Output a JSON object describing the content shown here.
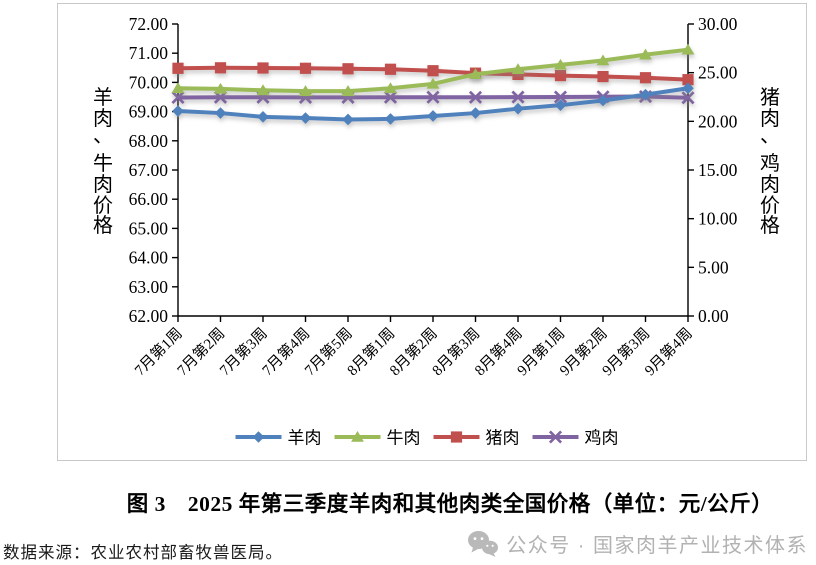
{
  "chart_data": {
    "type": "line",
    "title": "2025年第三季度羊肉和其他肉类全国价格（单位：元/公斤）",
    "categories": [
      "7月第1周",
      "7月第2周",
      "7月第3周",
      "7月第4周",
      "7月第5周",
      "8月第1周",
      "8月第2周",
      "8月第3周",
      "8月第4周",
      "9月第1周",
      "9月第2周",
      "9月第3周",
      "9月第4周"
    ],
    "series": [
      {
        "name": "羊肉",
        "axis": "left",
        "marker": "diamond",
        "color": "#4F81BD",
        "values": [
          69.02,
          68.95,
          68.82,
          68.78,
          68.73,
          68.75,
          68.85,
          68.95,
          69.1,
          69.22,
          69.38,
          69.58,
          69.8
        ]
      },
      {
        "name": "牛肉",
        "axis": "left",
        "marker": "triangle",
        "color": "#9BBB59",
        "values": [
          69.8,
          69.78,
          69.73,
          69.7,
          69.7,
          69.8,
          69.95,
          70.28,
          70.45,
          70.6,
          70.75,
          70.95,
          71.12
        ]
      },
      {
        "name": "猪肉",
        "axis": "right",
        "marker": "square",
        "color": "#C0504D",
        "values": [
          25.45,
          25.5,
          25.48,
          25.45,
          25.4,
          25.35,
          25.2,
          24.95,
          24.82,
          24.7,
          24.6,
          24.48,
          24.28
        ]
      },
      {
        "name": "鸡肉",
        "axis": "right",
        "marker": "x",
        "color": "#8064A2",
        "values": [
          22.45,
          22.47,
          22.47,
          22.46,
          22.46,
          22.47,
          22.48,
          22.47,
          22.49,
          22.5,
          22.52,
          22.55,
          22.42
        ]
      }
    ],
    "left_axis": {
      "title": "羊肉、牛肉价格",
      "min": 62,
      "max": 72,
      "ticks": [
        "72.00",
        "71.00",
        "70.00",
        "69.00",
        "68.00",
        "67.00",
        "66.00",
        "65.00",
        "64.00",
        "63.00",
        "62.00"
      ]
    },
    "right_axis": {
      "title": "猪肉、鸡肉价格",
      "min": 0,
      "max": 30,
      "ticks": [
        "30.00",
        "25.00",
        "20.00",
        "15.00",
        "10.00",
        "5.00",
        "0.00"
      ]
    },
    "legend_position": "bottom",
    "legend": [
      "羊肉",
      "牛肉",
      "猪肉",
      "鸡肉"
    ],
    "grid": false
  },
  "caption": {
    "text": "图 3　2025 年第三季度羊肉和其他肉类全国价格（单位：元/公斤）"
  },
  "source_note": {
    "text": "数据来源：农业农村部畜牧兽医局。"
  },
  "watermark": {
    "icon": "wechat-icon",
    "text": "公众号 · 国家肉羊产业技术体系"
  }
}
